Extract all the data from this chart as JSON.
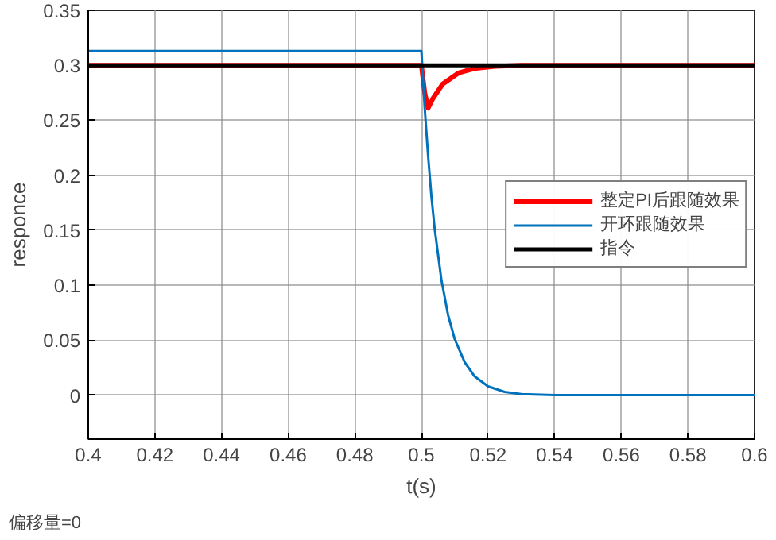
{
  "chart_data": {
    "type": "line",
    "xlabel": "t(s)",
    "ylabel": "responce",
    "annotations": [
      "偏移量=0"
    ],
    "xlim": [
      0.4,
      0.6
    ],
    "ylim": [
      -0.04,
      0.35
    ],
    "xticks": [
      0.4,
      0.42,
      0.44,
      0.46,
      0.48,
      0.5,
      0.52,
      0.54,
      0.56,
      0.58,
      0.6
    ],
    "yticks": [
      0,
      0.05,
      0.1,
      0.15,
      0.2,
      0.25,
      0.3,
      0.35
    ],
    "grid": true,
    "legend": "right",
    "marker": "none",
    "line_style": "solid",
    "series": [
      {
        "name": "整定PI后跟随效果",
        "color": "#ff0000",
        "x": [
          0.4,
          0.5,
          0.501,
          0.502,
          0.5035,
          0.5064,
          0.5111,
          0.5158,
          0.522,
          0.53,
          0.6
        ],
        "values": [
          0.3,
          0.3,
          0.275,
          0.261,
          0.27,
          0.283,
          0.293,
          0.297,
          0.299,
          0.3,
          0.3
        ]
      },
      {
        "name": "开环跟随效果",
        "color": "#0072bd",
        "x": [
          0.4,
          0.5,
          0.501,
          0.502,
          0.503,
          0.504,
          0.506,
          0.508,
          0.51,
          0.513,
          0.516,
          0.52,
          0.525,
          0.53,
          0.54,
          0.6
        ],
        "values": [
          0.313,
          0.313,
          0.261,
          0.218,
          0.181,
          0.151,
          0.105,
          0.073,
          0.051,
          0.03,
          0.017,
          0.008,
          0.003,
          0.001,
          0,
          0
        ]
      },
      {
        "name": "指令",
        "color": "#000000",
        "x": [
          0.4,
          0.6
        ],
        "values": [
          0.3,
          0.3
        ]
      }
    ]
  }
}
